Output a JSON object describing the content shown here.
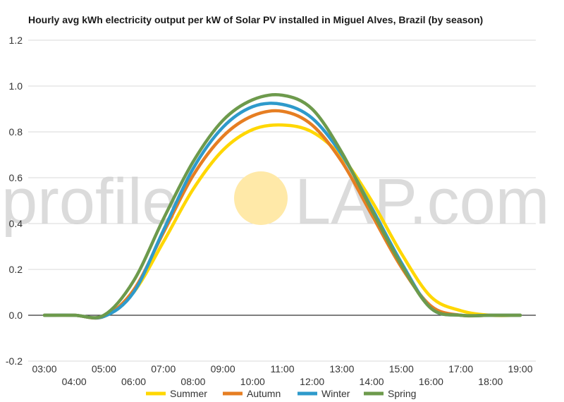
{
  "chart_data": {
    "type": "line",
    "title": "Hourly avg kWh electricity output per kW of Solar PV installed in Miguel Alves, Brazil (by season)",
    "xlabel": "",
    "ylabel": "",
    "x": [
      "03:00",
      "04:00",
      "05:00",
      "06:00",
      "07:00",
      "08:00",
      "09:00",
      "10:00",
      "11:00",
      "12:00",
      "13:00",
      "14:00",
      "15:00",
      "16:00",
      "17:00",
      "18:00",
      "19:00"
    ],
    "ylim": [
      -0.2,
      1.2
    ],
    "yticks": [
      "-0.2",
      "0.0",
      "0.2",
      "0.4",
      "0.6",
      "0.8",
      "1.0",
      "1.2"
    ],
    "grid": true,
    "legend_position": "bottom",
    "series": [
      {
        "name": "Summer",
        "color": "#FFD700",
        "values": [
          0.0,
          0.0,
          -0.005,
          0.1,
          0.32,
          0.55,
          0.72,
          0.81,
          0.83,
          0.8,
          0.69,
          0.5,
          0.27,
          0.08,
          0.02,
          0.0,
          0.0
        ]
      },
      {
        "name": "Autumn",
        "color": "#E67E22",
        "values": [
          0.0,
          0.0,
          -0.005,
          0.11,
          0.36,
          0.61,
          0.78,
          0.87,
          0.89,
          0.83,
          0.67,
          0.44,
          0.21,
          0.04,
          0.0,
          0.0,
          0.0
        ]
      },
      {
        "name": "Winter",
        "color": "#2E9ACB",
        "values": [
          0.0,
          0.0,
          -0.005,
          0.1,
          0.37,
          0.64,
          0.82,
          0.91,
          0.92,
          0.86,
          0.7,
          0.47,
          0.23,
          0.03,
          0.0,
          0.0,
          0.0
        ]
      },
      {
        "name": "Spring",
        "color": "#6D9A4C",
        "values": [
          0.0,
          0.0,
          0.0,
          0.15,
          0.42,
          0.67,
          0.85,
          0.94,
          0.96,
          0.9,
          0.71,
          0.46,
          0.22,
          0.03,
          0.0,
          0.0,
          0.0
        ]
      }
    ]
  },
  "watermark": {
    "text_left": "profile",
    "text_right": "LAP.com",
    "sun_color": "#FFE9A8"
  }
}
